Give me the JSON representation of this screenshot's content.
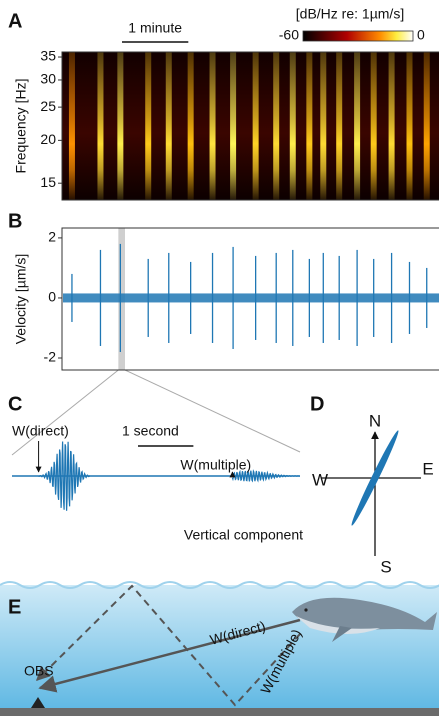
{
  "chart_data": [
    {
      "type": "spectrogram",
      "label": "A",
      "ylabel": "Frequency [Hz]",
      "scale_bar": {
        "label": "1 minute",
        "value": 1
      },
      "colorbar": {
        "label": "[dB/Hz re: 1µm/s]",
        "clim": [
          -60,
          0
        ],
        "ticks": [
          -60,
          0
        ]
      },
      "xlim": [
        0,
        5.7
      ],
      "ylim": [
        13.4,
        36.2
      ],
      "log_y": true,
      "yticks": [
        15,
        20,
        25,
        30,
        35
      ],
      "pulse_times": [
        0.15,
        0.58,
        0.88,
        1.3,
        1.61,
        1.94,
        2.27,
        2.58,
        2.92,
        3.23,
        3.48,
        3.73,
        3.94,
        4.18,
        4.45,
        4.7,
        4.97,
        5.24,
        5.5
      ],
      "pulse_levels": [
        -20,
        -12,
        -10,
        -14,
        -12,
        -15,
        -11,
        -9,
        -13,
        -12,
        -10,
        -14,
        -12,
        -13,
        -10,
        -14,
        -12,
        -15,
        -18
      ]
    },
    {
      "type": "line",
      "label": "B",
      "ylabel": "Velocity [µm/s]",
      "color": "#1f77b4",
      "xlim": [
        0,
        5.7
      ],
      "ylim": [
        -2.4,
        2.33
      ],
      "yticks": [
        -2,
        0,
        2
      ],
      "pulse_times": [
        0.15,
        0.58,
        0.88,
        1.3,
        1.61,
        1.94,
        2.27,
        2.58,
        2.92,
        3.23,
        3.48,
        3.73,
        3.94,
        4.18,
        4.45,
        4.7,
        4.97,
        5.24,
        5.5
      ],
      "pulse_amplitudes": [
        0.8,
        1.6,
        1.8,
        1.3,
        1.5,
        1.2,
        1.5,
        1.7,
        1.4,
        1.5,
        1.6,
        1.3,
        1.5,
        1.4,
        1.6,
        1.3,
        1.5,
        1.2,
        1.0
      ],
      "noise_amplitude": 0.15,
      "highlight": [
        0.85,
        0.95
      ]
    },
    {
      "type": "waveform",
      "label": "C",
      "title": "Vertical component",
      "color": "#1f77b4",
      "scale_bar": {
        "label": "1 second",
        "value": 1
      },
      "xlim": [
        0,
        5.2
      ],
      "ylim": [
        -1.1,
        1.1
      ],
      "packets": [
        {
          "name": "W(direct)",
          "onset": 0.48,
          "t": 0.96,
          "amplitude": 1,
          "width": 0.15
        },
        {
          "name": "W(multiple)",
          "onset": 3.98,
          "t": 4.3,
          "amplitude": 0.15,
          "width": 0.3
        }
      ]
    },
    {
      "type": "particle_motion",
      "label": "D",
      "compass": [
        "N",
        "E",
        "S",
        "W"
      ],
      "azimuth": 26,
      "color": "#1f77b4"
    }
  ],
  "diagram": {
    "label": "E",
    "paths": [
      "W(direct)",
      "W(multiple)"
    ],
    "station": "OBS"
  }
}
